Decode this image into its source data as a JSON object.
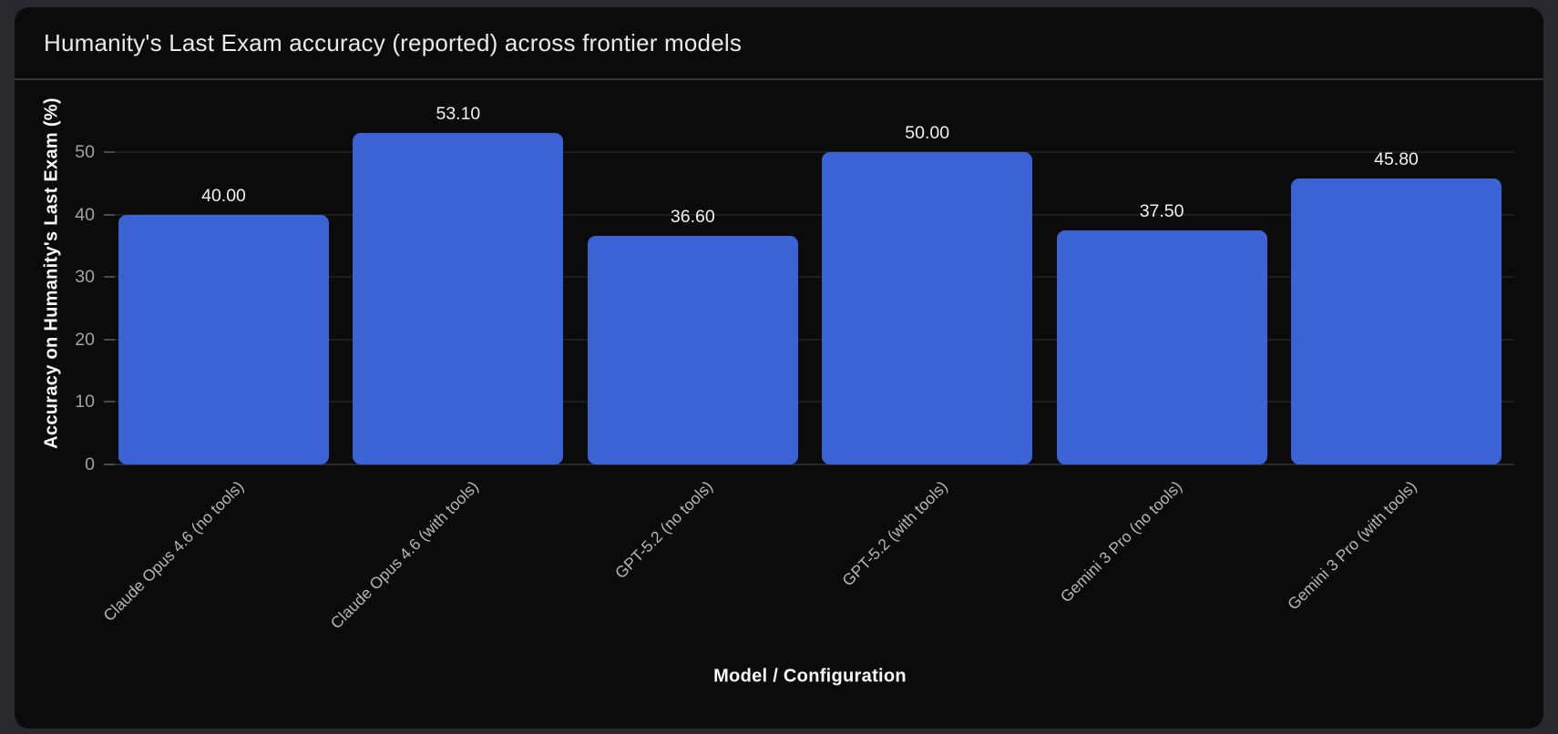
{
  "card": {
    "title": "Humanity's Last Exam accuracy (reported) across frontier models"
  },
  "chart_data": {
    "type": "bar",
    "title": "Humanity's Last Exam accuracy (reported) across frontier models",
    "categories": [
      "Claude Opus 4.6 (no tools)",
      "Claude Opus 4.6 (with tools)",
      "GPT-5.2 (no tools)",
      "GPT-5.2 (with tools)",
      "Gemini 3 Pro (no tools)",
      "Gemini 3 Pro (with tools)"
    ],
    "values": [
      40.0,
      53.1,
      36.6,
      50.0,
      37.5,
      45.8
    ],
    "value_labels": [
      "40.00",
      "53.10",
      "36.60",
      "50.00",
      "37.50",
      "45.80"
    ],
    "xlabel": "Model / Configuration",
    "ylabel": "Accuracy on Humanity's Last Exam (%)",
    "yticks": [
      0,
      10,
      20,
      30,
      40,
      50
    ],
    "ylim": [
      0,
      55
    ],
    "grid": true,
    "legend_position": "none",
    "colors": {
      "bar": "#3b63d5",
      "card_background": "#0b0b0c",
      "page_background": "#29292d",
      "gridline": "#1d1d1f",
      "tick_text": "#a2a2a2",
      "category_text": "#b6b6b6",
      "value_text": "#f0f0f0",
      "axis_title_text": "#fafafa"
    }
  }
}
